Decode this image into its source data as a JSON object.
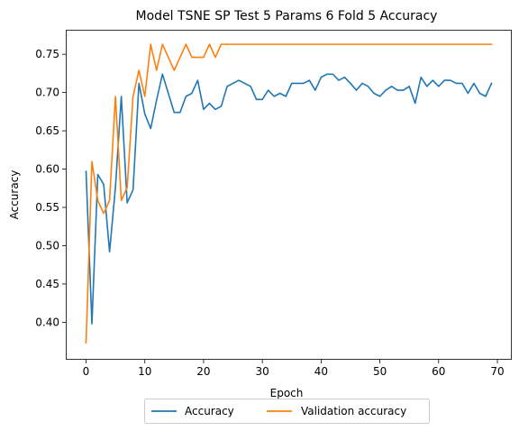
{
  "chart_data": {
    "type": "line",
    "title": "Model TSNE SP Test 5 Params 6 Fold 5 Accuracy",
    "xlabel": "Epoch",
    "ylabel": "Accuracy",
    "xlim": [
      -3.45,
      72.45
    ],
    "ylim": [
      0.351,
      0.782
    ],
    "xticks": [
      0,
      10,
      20,
      30,
      40,
      50,
      60,
      70
    ],
    "yticks": [
      0.4,
      0.45,
      0.5,
      0.55,
      0.6,
      0.65,
      0.7,
      0.75
    ],
    "xtick_labels": [
      "0",
      "10",
      "20",
      "30",
      "40",
      "50",
      "60",
      "70"
    ],
    "ytick_labels": [
      "0.40",
      "0.45",
      "0.50",
      "0.55",
      "0.60",
      "0.65",
      "0.70",
      "0.75"
    ],
    "legend_position": "lower center, outside below axes, two columns",
    "x": [
      0,
      1,
      2,
      3,
      4,
      5,
      6,
      7,
      8,
      9,
      10,
      11,
      12,
      13,
      14,
      15,
      16,
      17,
      18,
      19,
      20,
      21,
      22,
      23,
      24,
      25,
      26,
      27,
      28,
      29,
      30,
      31,
      32,
      33,
      34,
      35,
      36,
      37,
      38,
      39,
      40,
      41,
      42,
      43,
      44,
      45,
      46,
      47,
      48,
      49,
      50,
      51,
      52,
      53,
      54,
      55,
      56,
      57,
      58,
      59,
      60,
      61,
      62,
      63,
      64,
      65,
      66,
      67,
      68,
      69
    ],
    "series": [
      {
        "name": "Accuracy",
        "color": "#1f77b4",
        "values": [
          0.597,
          0.398,
          0.593,
          0.58,
          0.492,
          0.576,
          0.695,
          0.556,
          0.573,
          0.712,
          0.672,
          0.653,
          0.69,
          0.724,
          0.699,
          0.674,
          0.674,
          0.695,
          0.699,
          0.716,
          0.678,
          0.686,
          0.678,
          0.682,
          0.708,
          0.712,
          0.716,
          0.712,
          0.708,
          0.691,
          0.691,
          0.703,
          0.695,
          0.699,
          0.695,
          0.712,
          0.712,
          0.712,
          0.716,
          0.703,
          0.72,
          0.724,
          0.724,
          0.716,
          0.72,
          0.712,
          0.703,
          0.712,
          0.708,
          0.699,
          0.695,
          0.703,
          0.708,
          0.703,
          0.703,
          0.708,
          0.686,
          0.72,
          0.708,
          0.716,
          0.708,
          0.716,
          0.716,
          0.712,
          0.712,
          0.699,
          0.712,
          0.699,
          0.695,
          0.712
        ]
      },
      {
        "name": "Validation accuracy",
        "color": "#ff7f0e",
        "values": [
          0.373,
          0.61,
          0.559,
          0.542,
          0.559,
          0.695,
          0.559,
          0.576,
          0.695,
          0.729,
          0.695,
          0.763,
          0.729,
          0.763,
          0.746,
          0.729,
          0.746,
          0.763,
          0.746,
          0.746,
          0.746,
          0.763,
          0.746,
          0.763,
          0.763,
          0.763,
          0.763,
          0.763,
          0.763,
          0.763,
          0.763,
          0.763,
          0.763,
          0.763,
          0.763,
          0.763,
          0.763,
          0.763,
          0.763,
          0.763,
          0.763,
          0.763,
          0.763,
          0.763,
          0.763,
          0.763,
          0.763,
          0.763,
          0.763,
          0.763,
          0.763,
          0.763,
          0.763,
          0.763,
          0.763,
          0.763,
          0.763,
          0.763,
          0.763,
          0.763,
          0.763,
          0.763,
          0.763,
          0.763,
          0.763,
          0.763,
          0.763,
          0.763,
          0.763,
          0.763
        ]
      }
    ]
  }
}
